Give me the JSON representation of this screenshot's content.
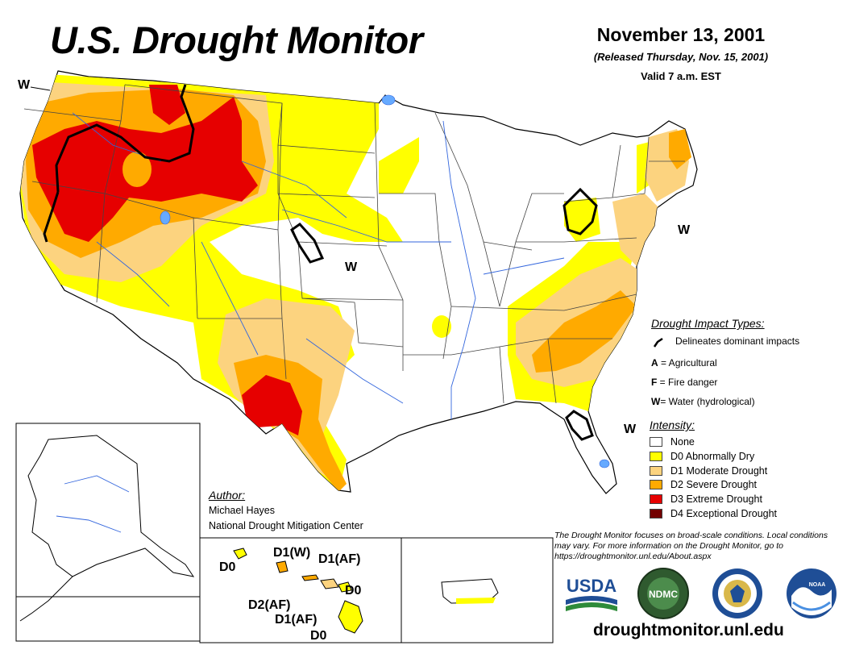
{
  "title": "U.S. Drought Monitor",
  "date": "November 13, 2001",
  "released": "(Released Thursday, Nov. 15, 2001)",
  "valid": "Valid 7 a.m. EST",
  "impact_types": {
    "header": "Drought Impact Types:",
    "line_desc": "Delineates dominant impacts",
    "items": [
      {
        "code": "A",
        "text": " = Agricultural"
      },
      {
        "code": "F",
        "text": " = Fire danger"
      },
      {
        "code": "W",
        "text": "= Water (hydrological)"
      }
    ]
  },
  "intensity": {
    "header": "Intensity:",
    "items": [
      {
        "label": "None",
        "color": "#ffffff"
      },
      {
        "label": "D0 Abnormally Dry",
        "color": "#ffff00"
      },
      {
        "label": "D1 Moderate Drought",
        "color": "#fcd37f"
      },
      {
        "label": "D2 Severe Drought",
        "color": "#ffaa00"
      },
      {
        "label": "D3 Extreme Drought",
        "color": "#e60000"
      },
      {
        "label": "D4 Exceptional Drought",
        "color": "#730000"
      }
    ]
  },
  "author": {
    "header": "Author:",
    "name": "Michael Hayes",
    "org": "National Drought Mitigation Center"
  },
  "map_labels": {
    "w_northwest": "W",
    "w_plains": "W",
    "w_northeast": "W",
    "w_florida": "W"
  },
  "hawaii_labels": {
    "kauai": "D0",
    "oahu_a": "D1(W)",
    "oahu_b": "D1(AF)",
    "maui": "D0",
    "molokai": "D2(AF)",
    "bigisland_a": "D1(AF)",
    "bigisland_b": "D0"
  },
  "disclaimer": "The Drought Monitor focuses on broad-scale conditions. Local conditions may vary. For more information on the Drought Monitor, go to https://droughtmonitor.unl.edu/About.aspx",
  "logos": {
    "usda": "USDA",
    "ndmc": "NDMC",
    "noaa": "NOAA"
  },
  "url": "droughtmonitor.unl.edu"
}
